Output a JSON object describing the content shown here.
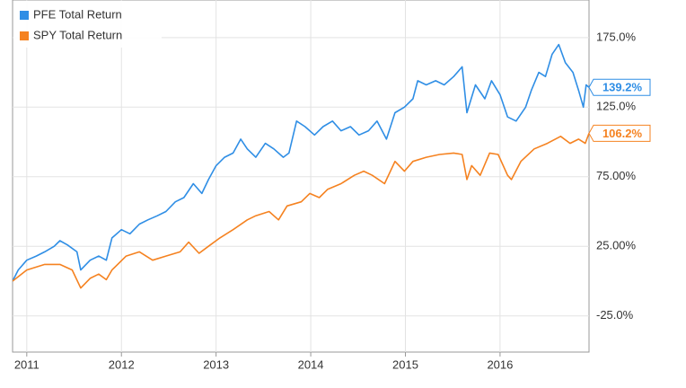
{
  "chart_data": {
    "type": "line",
    "xlim": [
      2010.85,
      2016.94
    ],
    "xticks": [
      2011,
      2012,
      2013,
      2014,
      2015,
      2016
    ],
    "ylim": [
      -51,
      202
    ],
    "yticks": [
      {
        "value": 175,
        "label": "175.0%"
      },
      {
        "value": 125,
        "label": "125.0%"
      },
      {
        "value": 75,
        "label": "75.00%"
      },
      {
        "value": 25,
        "label": "25.00%"
      },
      {
        "value": -25,
        "label": "-25.0%"
      }
    ],
    "grid": true,
    "legend": "top-left",
    "series": [
      {
        "name": "PFE Total Return",
        "color": "#2f8ee5",
        "last_value_label": "139.2%",
        "x": [
          2010.85,
          2010.91,
          2011.0,
          2011.1,
          2011.19,
          2011.29,
          2011.35,
          2011.43,
          2011.53,
          2011.57,
          2011.67,
          2011.76,
          2011.84,
          2011.9,
          2012.0,
          2012.09,
          2012.19,
          2012.28,
          2012.38,
          2012.47,
          2012.57,
          2012.66,
          2012.76,
          2012.85,
          2012.92,
          2013.0,
          2013.09,
          2013.18,
          2013.26,
          2013.33,
          2013.42,
          2013.52,
          2013.61,
          2013.71,
          2013.77,
          2013.85,
          2013.94,
          2014.04,
          2014.13,
          2014.23,
          2014.32,
          2014.42,
          2014.51,
          2014.61,
          2014.7,
          2014.8,
          2014.89,
          2014.99,
          2015.08,
          2015.13,
          2015.22,
          2015.32,
          2015.41,
          2015.51,
          2015.6,
          2015.65,
          2015.74,
          2015.84,
          2015.91,
          2016.0,
          2016.08,
          2016.17,
          2016.27,
          2016.33,
          2016.41,
          2016.48,
          2016.55,
          2016.62,
          2016.69,
          2016.77,
          2016.83,
          2016.88,
          2016.91,
          2016.94
        ],
        "values": [
          0,
          8,
          15,
          18,
          21,
          25,
          29,
          26,
          21,
          8,
          15,
          18,
          15,
          31,
          37,
          34,
          41,
          44,
          47,
          50,
          57,
          60,
          70,
          63,
          73,
          83,
          89,
          92,
          102,
          95,
          89,
          99,
          95,
          89,
          92,
          115,
          111,
          105,
          111,
          115,
          108,
          111,
          105,
          108,
          115,
          102,
          121,
          125,
          131,
          144,
          141,
          144,
          141,
          147,
          154,
          121,
          141,
          131,
          144,
          134,
          118,
          115,
          125,
          137,
          150,
          147,
          163,
          170,
          157,
          150,
          137,
          125,
          141,
          139.2
        ]
      },
      {
        "name": "SPY Total Return",
        "color": "#f58220",
        "last_value_label": "106.2%",
        "x": [
          2010.85,
          2011.0,
          2011.19,
          2011.35,
          2011.48,
          2011.57,
          2011.67,
          2011.76,
          2011.84,
          2011.9,
          2012.05,
          2012.19,
          2012.33,
          2012.47,
          2012.62,
          2012.71,
          2012.82,
          2012.92,
          2013.04,
          2013.18,
          2013.33,
          2013.42,
          2013.56,
          2013.66,
          2013.75,
          2013.9,
          2013.99,
          2014.09,
          2014.18,
          2014.32,
          2014.46,
          2014.56,
          2014.65,
          2014.78,
          2014.89,
          2014.99,
          2015.08,
          2015.22,
          2015.36,
          2015.51,
          2015.6,
          2015.65,
          2015.7,
          2015.79,
          2015.89,
          2015.98,
          2016.08,
          2016.12,
          2016.22,
          2016.36,
          2016.5,
          2016.64,
          2016.74,
          2016.83,
          2016.9,
          2016.94
        ],
        "values": [
          0,
          8,
          12,
          12,
          8,
          -5,
          2,
          5,
          1,
          8,
          18,
          21,
          15,
          18,
          21,
          28,
          20,
          25,
          31,
          37,
          44,
          47,
          50,
          44,
          54,
          57,
          63,
          60,
          66,
          70,
          76,
          79,
          76,
          70,
          86,
          79,
          86,
          89,
          91,
          92,
          91,
          73,
          83,
          76,
          92,
          91,
          76,
          73,
          86,
          95,
          99,
          104,
          99,
          102,
          99,
          106.2
        ]
      }
    ]
  }
}
